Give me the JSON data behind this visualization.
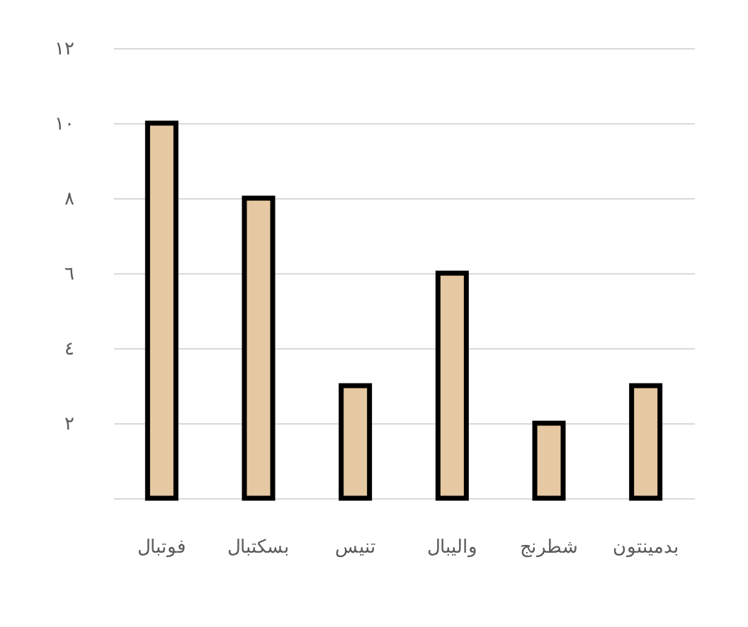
{
  "chart_data": {
    "type": "bar",
    "categories": [
      "فوتبال",
      "بسکتبال",
      "تنیس",
      "واليبال",
      "شطرنج",
      "بدمینتون"
    ],
    "values": [
      10,
      8,
      3,
      6,
      2,
      3
    ],
    "color": "#e6c9a3",
    "ylim": [
      0,
      12
    ],
    "yticks": [
      {
        "value": 0,
        "label": null
      },
      {
        "value": 2,
        "label": "٢"
      },
      {
        "value": 4,
        "label": "٤"
      },
      {
        "value": 6,
        "label": "٦"
      },
      {
        "value": 8,
        "label": "٨"
      },
      {
        "value": 10,
        "label": "١٠"
      },
      {
        "value": 12,
        "label": "١٢"
      }
    ],
    "grid": "y"
  }
}
